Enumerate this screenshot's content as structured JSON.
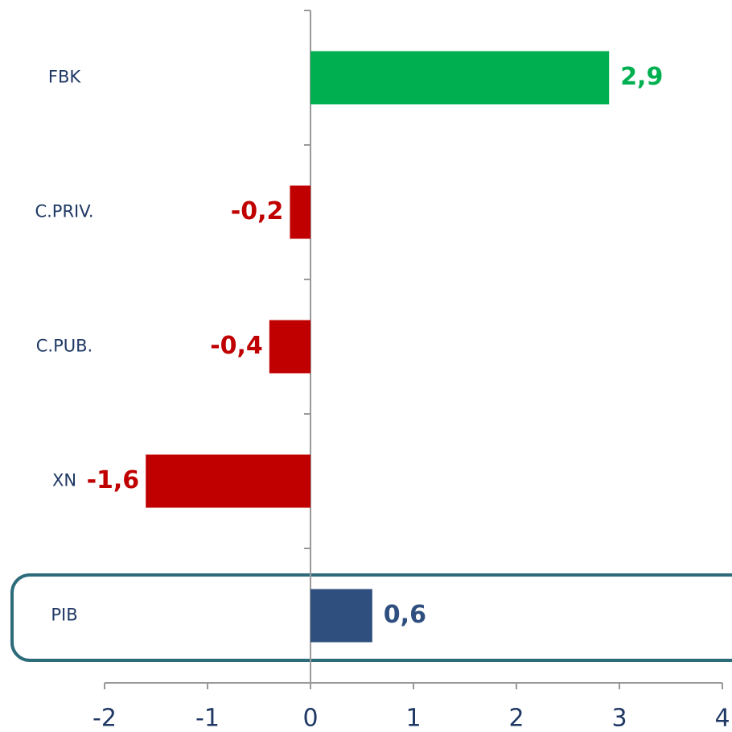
{
  "chart_data": {
    "type": "bar",
    "orientation": "horizontal",
    "categories": [
      "FBK",
      "C.PRIV.",
      "C.PUB.",
      "XN",
      "PIB"
    ],
    "values": [
      2.9,
      -0.2,
      -0.4,
      -1.6,
      0.6
    ],
    "value_labels": [
      "2,9",
      "-0,2",
      "-0,4",
      "-1,6",
      "0,6"
    ],
    "colors": [
      "#00b050",
      "#c00000",
      "#c00000",
      "#c00000",
      "#2f4f7f"
    ],
    "xlim": [
      -2,
      4
    ],
    "xticks": [
      -2,
      -1,
      0,
      1,
      2,
      3,
      4
    ],
    "grid": false
  }
}
